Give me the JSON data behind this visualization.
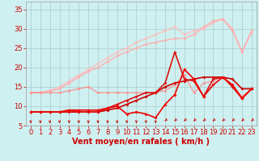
{
  "title": "",
  "xlabel": "Vent moyen/en rafales ( km/h )",
  "bg_color": "#cff0f0",
  "grid_color": "#aacccc",
  "tick_color": "#cc0000",
  "xlim": [
    -0.5,
    23.5
  ],
  "ylim": [
    5,
    37
  ],
  "xticks": [
    0,
    1,
    2,
    3,
    4,
    5,
    6,
    7,
    8,
    9,
    10,
    11,
    12,
    13,
    14,
    15,
    16,
    17,
    18,
    19,
    20,
    21,
    22,
    23
  ],
  "yticks": [
    5,
    10,
    15,
    20,
    25,
    30,
    35
  ],
  "lines": [
    {
      "x": [
        0,
        1,
        2,
        3,
        4,
        5,
        6,
        7,
        8,
        9,
        10,
        11,
        12,
        13,
        14,
        15,
        16,
        17,
        18,
        19,
        20,
        21,
        22,
        23
      ],
      "y": [
        13.5,
        13.5,
        14.0,
        15.0,
        16.5,
        18.0,
        19.5,
        21.0,
        22.5,
        24.0,
        25.0,
        26.5,
        27.5,
        28.5,
        29.5,
        30.5,
        28.5,
        29.5,
        30.0,
        31.5,
        32.5,
        30.0,
        24.0,
        29.0
      ],
      "color": "#ffbbbb",
      "lw": 1.3,
      "marker": "D",
      "ms": 2.0,
      "alpha": 0.75,
      "zorder": 2
    },
    {
      "x": [
        0,
        1,
        2,
        3,
        4,
        5,
        6,
        7,
        8,
        9,
        10,
        11,
        12,
        13,
        14,
        15,
        16,
        17,
        18,
        19,
        20,
        21,
        22,
        23
      ],
      "y": [
        13.5,
        13.5,
        14.0,
        14.5,
        16.0,
        17.5,
        19.0,
        20.0,
        21.5,
        23.0,
        24.0,
        25.0,
        26.0,
        26.5,
        27.0,
        27.5,
        27.5,
        28.5,
        30.5,
        32.0,
        32.5,
        29.5,
        24.0,
        29.5
      ],
      "color": "#ffaaaa",
      "lw": 1.3,
      "marker": "D",
      "ms": 2.0,
      "alpha": 0.75,
      "zorder": 2
    },
    {
      "x": [
        0,
        1,
        2,
        3,
        4,
        5,
        6,
        7,
        8,
        9,
        10,
        11,
        12,
        13,
        14,
        15,
        16,
        17,
        18,
        19,
        20,
        21,
        22,
        23
      ],
      "y": [
        13.5,
        13.5,
        13.5,
        13.5,
        14.0,
        14.5,
        15.0,
        13.5,
        13.5,
        13.5,
        13.5,
        13.5,
        13.5,
        13.5,
        14.0,
        15.5,
        18.0,
        13.5,
        16.0,
        16.5,
        17.5,
        15.5,
        12.5,
        14.5
      ],
      "color": "#ff8888",
      "lw": 1.1,
      "marker": "D",
      "ms": 2.0,
      "alpha": 0.75,
      "zorder": 3
    },
    {
      "x": [
        0,
        1,
        2,
        3,
        4,
        5,
        6,
        7,
        8,
        9,
        10,
        11,
        12,
        13,
        14,
        15,
        16,
        17,
        18,
        19,
        20,
        21,
        22,
        23
      ],
      "y": [
        8.5,
        8.5,
        8.5,
        8.5,
        8.5,
        8.5,
        8.5,
        8.5,
        9.0,
        9.5,
        10.5,
        11.5,
        12.5,
        13.5,
        15.0,
        16.0,
        16.5,
        17.0,
        17.5,
        17.5,
        17.5,
        17.0,
        14.5,
        14.5
      ],
      "color": "#cc0000",
      "lw": 1.2,
      "marker": "D",
      "ms": 2.0,
      "alpha": 1.0,
      "zorder": 5
    },
    {
      "x": [
        0,
        1,
        2,
        3,
        4,
        5,
        6,
        7,
        8,
        9,
        10,
        11,
        12,
        13,
        14,
        15,
        16,
        17,
        18,
        19,
        20,
        21,
        22,
        23
      ],
      "y": [
        8.5,
        8.5,
        8.5,
        8.5,
        9.0,
        8.5,
        8.5,
        8.5,
        9.5,
        10.5,
        11.5,
        12.5,
        13.5,
        13.5,
        16.0,
        24.0,
        17.0,
        16.5,
        12.5,
        17.0,
        17.5,
        15.0,
        12.0,
        14.5
      ],
      "color": "#dd1111",
      "lw": 1.2,
      "marker": "D",
      "ms": 2.0,
      "alpha": 1.0,
      "zorder": 5
    },
    {
      "x": [
        0,
        1,
        2,
        3,
        4,
        5,
        6,
        7,
        8,
        9,
        10,
        11,
        12,
        13,
        14,
        15,
        16,
        17,
        18,
        19,
        20,
        21,
        22,
        23
      ],
      "y": [
        8.5,
        8.5,
        8.5,
        8.5,
        9.0,
        9.0,
        9.0,
        9.0,
        9.5,
        10.0,
        8.0,
        8.5,
        8.0,
        7.0,
        10.5,
        13.0,
        19.5,
        17.0,
        12.5,
        15.5,
        17.5,
        15.5,
        12.0,
        14.5
      ],
      "color": "#ee0000",
      "lw": 1.2,
      "marker": "D",
      "ms": 2.0,
      "alpha": 1.0,
      "zorder": 5
    }
  ],
  "font_size": 6,
  "xlabel_fontsize": 7,
  "arrow_down_until": 13
}
